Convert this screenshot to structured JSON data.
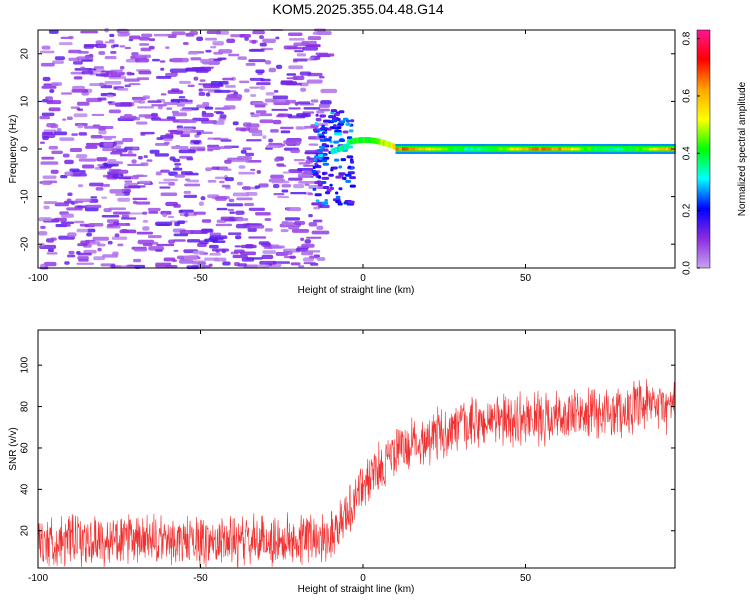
{
  "title": "KOM5.2025.355.04.48.G14",
  "chart_data": [
    {
      "type": "heatmap",
      "title": "KOM5.2025.355.04.48.G14",
      "xlabel": "Height of straight line (km)",
      "ylabel": "Frequency (Hz)",
      "xlim": [
        -100,
        96
      ],
      "ylim": [
        -25,
        25
      ],
      "xticks": [
        -100,
        -50,
        0,
        50
      ],
      "yticks": [
        -20,
        -10,
        0,
        10,
        20
      ],
      "colorbar": {
        "label": "Normalized spectral amplitude",
        "range": [
          0,
          0.83
        ],
        "ticks": [
          0.0,
          0.2,
          0.4,
          0.6,
          0.8
        ],
        "colormap": [
          "#c8a2f0",
          "#8a2be2",
          "#0000ff",
          "#00ffff",
          "#00ff00",
          "#ffff00",
          "#ffa500",
          "#ff0000",
          "#ff1493"
        ]
      },
      "features": {
        "noise_region_x": [
          -100,
          -15
        ],
        "noise_amplitude_range": [
          0.0,
          0.15
        ],
        "transition_x": [
          -15,
          10
        ],
        "signal_line_x": [
          10,
          96
        ],
        "signal_frequency_hz": 0,
        "signal_amplitude_range": [
          0.3,
          0.75
        ]
      }
    },
    {
      "type": "line",
      "xlabel": "Height of straight line (km)",
      "ylabel": "SNR (v/v)",
      "xlim": [
        -100,
        96
      ],
      "ylim": [
        2,
        117
      ],
      "xticks": [
        -100,
        -50,
        0,
        50
      ],
      "yticks": [
        20,
        40,
        60,
        80,
        100
      ],
      "series": [
        {
          "name": "SNR",
          "color": "#f03030",
          "trend_x": [
            -100,
            -50,
            -25,
            -10,
            -5,
            0,
            5,
            10,
            20,
            30,
            40,
            50,
            60,
            70,
            80,
            90,
            96
          ],
          "trend_y": [
            15,
            15,
            15,
            18,
            28,
            42,
            50,
            58,
            65,
            70,
            73,
            74,
            75,
            76,
            78,
            80,
            80
          ],
          "noise_halfwidth": 12
        }
      ]
    }
  ]
}
